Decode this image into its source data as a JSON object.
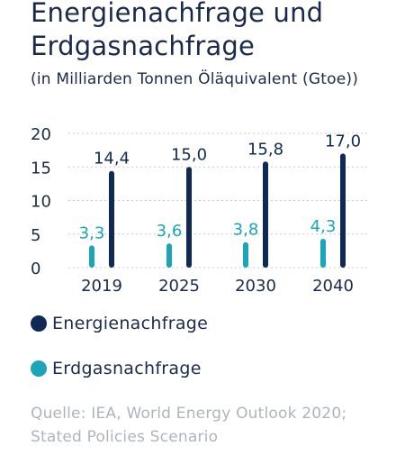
{
  "header": {
    "title_line1": "Energienachfrage und",
    "title_line2": "Erdgasnachfrage",
    "subtitle": "(in Milliarden Tonnen Öläquivalent (Gtoe))"
  },
  "colors": {
    "energie": "#0e2a55",
    "erdgas": "#1aa5b8",
    "text": "#1b2a4a",
    "source": "#b0b4ba"
  },
  "chart_data": {
    "type": "bar",
    "categories": [
      "2019",
      "2025",
      "2030",
      "2040"
    ],
    "series": [
      {
        "name": "Erdgasnachfrage",
        "values": [
          3.3,
          3.6,
          3.8,
          4.3
        ],
        "labels": [
          "3,3",
          "3,6",
          "3,8",
          "4,3"
        ]
      },
      {
        "name": "Energienachfrage",
        "values": [
          14.4,
          15.0,
          15.8,
          17.0
        ],
        "labels": [
          "14,4",
          "15,0",
          "15,8",
          "17,0"
        ]
      }
    ],
    "yticks": [
      "0",
      "5",
      "10",
      "15",
      "20"
    ],
    "ylim": [
      0,
      20
    ],
    "grid": true,
    "title": "Energienachfrage und Erdgasnachfrage",
    "xlabel": "",
    "ylabel": ""
  },
  "legend": [
    {
      "label": "Energienachfrage",
      "icon": "navy-dot"
    },
    {
      "label": "Erdgasnachfrage",
      "icon": "teal-dot"
    }
  ],
  "source": {
    "line1": "Quelle: IEA, World Energy Outlook 2020;",
    "line2": "Stated Policies Scenario"
  }
}
